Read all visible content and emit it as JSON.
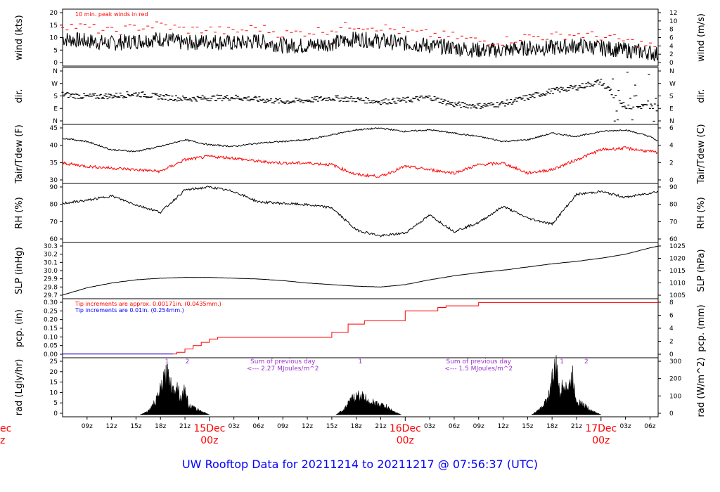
{
  "title": "UW Rooftop Data for 20211214  to  20211217 @ 07:56:37  (UTC)",
  "colors": {
    "main": "#000000",
    "peak": "#ff0000",
    "dew": "#ff0000",
    "blue": "#0000ff",
    "note": "#9933cc",
    "date": "#ff0000",
    "title": "#0000ff"
  },
  "x_axis": {
    "ticks": [
      "09z",
      "12z",
      "15z",
      "18z",
      "21z",
      "03z",
      "06z",
      "09z",
      "12z",
      "15z",
      "18z",
      "21z",
      "03z",
      "06z",
      "09z",
      "12z",
      "15z",
      "18z",
      "21z",
      "03z",
      "06z"
    ],
    "day_labels": [
      {
        "day": "15Dec",
        "hour": "00z"
      },
      {
        "day": "16Dec",
        "hour": "00z"
      },
      {
        "day": "17Dec",
        "hour": "00z"
      }
    ],
    "edge_day": "ec",
    "edge_hour": "z"
  },
  "chart_data": [
    {
      "type": "line",
      "panel": "wind",
      "ylabel_left": "wind (kts)",
      "ylabel_right": "wind (m/s)",
      "left_ticks": [
        "0",
        "5",
        "10",
        "15",
        "20"
      ],
      "right_ticks": [
        "0",
        "2",
        "4",
        "6",
        "8",
        "10",
        "12"
      ],
      "ylim": [
        0,
        23
      ],
      "note": "10 min. peak winds in red",
      "series": [
        {
          "name": "wind",
          "x": [
            6,
            9,
            12,
            15,
            18,
            21,
            24,
            27,
            30,
            33,
            36,
            39,
            42,
            45,
            48,
            51,
            54,
            57,
            60,
            63,
            66,
            69,
            72,
            75,
            78,
            79
          ],
          "values": [
            11,
            10,
            9,
            10,
            11,
            9,
            10,
            9,
            10,
            8,
            8,
            9,
            11,
            10,
            9,
            8,
            7,
            6,
            6,
            7,
            7,
            8,
            7,
            6,
            5,
            4
          ]
        },
        {
          "name": "peak",
          "x": [
            6,
            9,
            12,
            15,
            18,
            21,
            24,
            27,
            30,
            33,
            36,
            39,
            42,
            45,
            48,
            51,
            54,
            57,
            60,
            63,
            66,
            69,
            72,
            75,
            78,
            79
          ],
          "values": [
            17,
            16,
            14,
            16,
            17,
            15,
            15,
            14,
            16,
            13,
            14,
            15,
            17,
            16,
            14,
            13,
            12,
            10,
            10,
            12,
            12,
            13,
            12,
            10,
            8,
            7
          ]
        }
      ]
    },
    {
      "type": "scatter",
      "panel": "dir",
      "ylabel_left": "dir.",
      "ylabel_right": "dir.",
      "left_ticks": [
        "N",
        "E",
        "S",
        "W",
        "N"
      ],
      "right_ticks": [
        "N",
        "E",
        "S",
        "W",
        "N"
      ],
      "x": [
        6,
        9,
        12,
        15,
        18,
        21,
        24,
        27,
        30,
        33,
        36,
        39,
        42,
        45,
        48,
        51,
        54,
        57,
        60,
        63,
        66,
        69,
        72,
        75,
        78,
        79
      ],
      "values": [
        190,
        175,
        180,
        195,
        175,
        160,
        165,
        170,
        155,
        140,
        150,
        165,
        155,
        140,
        150,
        170,
        120,
        110,
        125,
        170,
        215,
        240,
        280,
        100,
        110,
        115
      ]
    },
    {
      "type": "line",
      "panel": "temp",
      "ylabel_left": "Tair/Tdew (F)",
      "ylabel_right": "Tair/Tdew (C)",
      "left_ticks": [
        "30",
        "35",
        "40",
        "45"
      ],
      "right_ticks": [
        "0",
        "2",
        "4",
        "6"
      ],
      "ylim": [
        28.5,
        45
      ],
      "series": [
        {
          "name": "Tair",
          "x": [
            6,
            9,
            12,
            15,
            18,
            21,
            24,
            27,
            30,
            33,
            36,
            39,
            42,
            45,
            48,
            51,
            54,
            57,
            60,
            63,
            66,
            69,
            72,
            75,
            78,
            79
          ],
          "values": [
            41.5,
            40.5,
            38,
            37.5,
            39,
            41,
            39.5,
            39,
            40,
            40.5,
            41,
            42.5,
            44,
            44.5,
            43.5,
            44,
            43,
            42,
            40.5,
            41,
            43,
            42,
            43.5,
            44,
            42,
            40.5
          ]
        },
        {
          "name": "Tdew",
          "x": [
            6,
            9,
            12,
            15,
            18,
            21,
            24,
            27,
            30,
            33,
            36,
            39,
            42,
            45,
            48,
            51,
            54,
            57,
            60,
            63,
            66,
            69,
            72,
            75,
            78,
            79
          ],
          "values": [
            34,
            33,
            32.5,
            32,
            31.5,
            35,
            36,
            35.5,
            34.5,
            34,
            34,
            33.5,
            30.5,
            30,
            33,
            32,
            31,
            33.5,
            34,
            31,
            32,
            35,
            38,
            38.5,
            37.5,
            37
          ]
        }
      ]
    },
    {
      "type": "line",
      "panel": "rh",
      "ylabel_left": "RH (%)",
      "ylabel_right": "RH (%)",
      "left_ticks": [
        "60",
        "70",
        "80",
        "90"
      ],
      "right_ticks": [
        "60",
        "70",
        "80",
        "90"
      ],
      "ylim": [
        55,
        92
      ],
      "x": [
        6,
        9,
        12,
        15,
        18,
        21,
        24,
        27,
        30,
        33,
        36,
        39,
        42,
        45,
        48,
        51,
        54,
        57,
        60,
        63,
        66,
        69,
        72,
        75,
        78,
        79
      ],
      "values": [
        80,
        82,
        85,
        79,
        74,
        89,
        91,
        88,
        81,
        80,
        79,
        77,
        62,
        58,
        60,
        72,
        61,
        67,
        78,
        70,
        66,
        86,
        88,
        84,
        87,
        88
      ]
    },
    {
      "type": "line",
      "panel": "slp",
      "ylabel_left": "SLP (inHg)",
      "ylabel_right": "SLP (hPa)",
      "left_ticks": [
        "29.7",
        "29.8",
        "29.9",
        "30.0",
        "30.1",
        "30.2",
        "30.3"
      ],
      "right_ticks": [
        "1005",
        "1010",
        "1015",
        "1020",
        "1025"
      ],
      "ylim": [
        29.65,
        30.3
      ],
      "x": [
        6,
        9,
        12,
        15,
        18,
        21,
        24,
        27,
        30,
        33,
        36,
        39,
        42,
        45,
        48,
        51,
        54,
        57,
        60,
        63,
        66,
        69,
        72,
        75,
        78,
        79
      ],
      "values": [
        29.67,
        29.76,
        29.82,
        29.86,
        29.88,
        29.89,
        29.89,
        29.88,
        29.87,
        29.85,
        29.82,
        29.8,
        29.78,
        29.77,
        29.8,
        29.86,
        29.91,
        29.95,
        29.98,
        30.02,
        30.06,
        30.09,
        30.13,
        30.18,
        30.26,
        30.28
      ]
    },
    {
      "type": "line",
      "panel": "pcp",
      "ylabel_left": "pcp. (in)",
      "ylabel_right": "pcp. (mm)",
      "left_ticks": [
        "0.00",
        "0.05",
        "0.10",
        "0.15",
        "0.20",
        "0.25",
        "0.30"
      ],
      "right_ticks": [
        "0",
        "2",
        "4",
        "6",
        "8"
      ],
      "ylim": [
        -0.01,
        0.32
      ],
      "notes": [
        "Tip increments are approx. 0.00171in. (0.0435mm.)",
        "Tip increments are 0.01in. (0.254mm.)"
      ],
      "x": [
        6,
        19.5,
        20,
        21,
        22,
        23,
        24,
        25,
        38,
        39,
        41,
        43,
        47,
        48,
        52,
        53,
        56,
        57,
        79
      ],
      "values": [
        0,
        0,
        0.01,
        0.03,
        0.05,
        0.07,
        0.09,
        0.1,
        0.1,
        0.13,
        0.18,
        0.2,
        0.2,
        0.26,
        0.28,
        0.29,
        0.29,
        0.31,
        0.31
      ]
    },
    {
      "type": "area",
      "panel": "rad",
      "ylabel_left": "rad (Lgly/hr)",
      "ylabel_right": "rad (W/m^2)",
      "left_ticks": [
        "0",
        "5",
        "10",
        "15",
        "20",
        "25"
      ],
      "right_ticks": [
        "0",
        "100",
        "200",
        "300"
      ],
      "ylim": [
        0,
        28
      ],
      "annotations": [
        {
          "text": "Sum of previous day",
          "line2": "<--- 2.27 MJoules/m^2",
          "x": 33
        },
        {
          "text": "Sum of previous day",
          "line2": "<--- 1.5 MJoules/m^2",
          "x": 57
        }
      ],
      "markers": [
        {
          "label": "1",
          "x": 18.8
        },
        {
          "label": "2",
          "x": 21.3
        },
        {
          "label": "1",
          "x": 42.5
        },
        {
          "label": "1",
          "x": 67.2
        },
        {
          "label": "2",
          "x": 70.2
        }
      ],
      "x": [
        15.5,
        16.5,
        17.5,
        18.5,
        19,
        19.5,
        20,
        20.5,
        21,
        21.5,
        22,
        23,
        24,
        39.5,
        40.5,
        41.5,
        42.5,
        43.5,
        44.5,
        45.5,
        46.5,
        47.5,
        63.5,
        64.5,
        65.5,
        66,
        66.5,
        67,
        67.5,
        68,
        68.5,
        69,
        70,
        71,
        72
      ],
      "values": [
        0,
        2,
        8,
        20,
        24,
        13,
        18,
        9,
        14,
        5,
        4,
        2,
        0,
        0,
        3,
        9,
        11,
        8,
        6,
        5,
        2,
        0,
        0,
        3,
        9,
        20,
        26,
        12,
        19,
        14,
        22,
        8,
        5,
        2,
        0
      ]
    }
  ]
}
